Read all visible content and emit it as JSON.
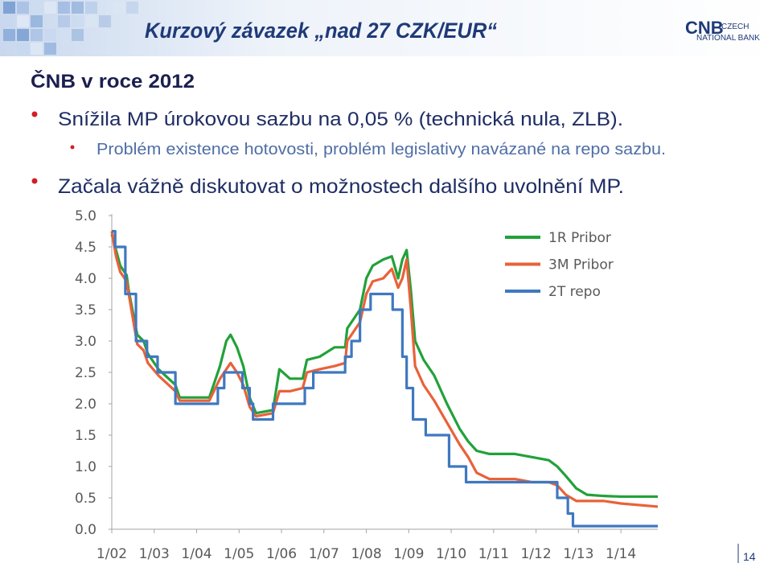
{
  "header": {
    "title": "Kurzový závazek „nad 27 CZK/EUR“",
    "logo": {
      "mark": "CNB",
      "line1": "CZECH",
      "line2": "NATIONAL BANK"
    }
  },
  "heading": "ČNB v roce 2012",
  "bullets": [
    {
      "level": 1,
      "text": "Snížila MP úrokovou sazbu na 0,05 % (technická nula, ZLB)."
    },
    {
      "level": 2,
      "text": "Problém existence hotovosti, problém legislativy navázané na repo sazbu."
    },
    {
      "level": 1,
      "text": "Začala vážně diskutovat o možnostech dalšího uvolnění MP."
    }
  ],
  "page_number": "14",
  "chart_data": {
    "type": "line",
    "legend": "upper right",
    "xlim": [
      2002,
      2014.87
    ],
    "xticks": [
      {
        "value": 2002,
        "label": "1/02"
      },
      {
        "value": 2003,
        "label": "1/03"
      },
      {
        "value": 2004,
        "label": "1/04"
      },
      {
        "value": 2005,
        "label": "1/05"
      },
      {
        "value": 2006,
        "label": "1/06"
      },
      {
        "value": 2007,
        "label": "1/07"
      },
      {
        "value": 2008,
        "label": "1/08"
      },
      {
        "value": 2009,
        "label": "1/09"
      },
      {
        "value": 2010,
        "label": "1/10"
      },
      {
        "value": 2011,
        "label": "1/11"
      },
      {
        "value": 2012,
        "label": "1/12"
      },
      {
        "value": 2013,
        "label": "1/13"
      },
      {
        "value": 2014,
        "label": "1/14"
      }
    ],
    "ylim": [
      0,
      5
    ],
    "yticks": [
      {
        "value": 0,
        "label": "0.0"
      },
      0.5,
      {
        "value": 1,
        "label": "1.0"
      },
      1.5,
      {
        "value": 2,
        "label": "2.0"
      },
      2.5,
      {
        "value": 3,
        "label": "3.0"
      },
      3.5,
      {
        "value": 4,
        "label": "4.0"
      },
      4.5,
      {
        "value": 5,
        "label": "5.0"
      }
    ],
    "series": [
      {
        "name": "1R Pribor",
        "color": "#22a13a",
        "x": [
          2002.0,
          2002.1,
          2002.2,
          2002.35,
          2002.4,
          2002.6,
          2002.75,
          2002.85,
          2003.1,
          2003.5,
          2003.6,
          2004.3,
          2004.55,
          2004.7,
          2004.8,
          2004.95,
          2005.1,
          2005.25,
          2005.4,
          2005.8,
          2005.95,
          2006.2,
          2006.5,
          2006.6,
          2006.9,
          2007.25,
          2007.5,
          2007.55,
          2007.85,
          2008.0,
          2008.15,
          2008.4,
          2008.6,
          2008.75,
          2008.85,
          2008.95,
          2009.05,
          2009.15,
          2009.35,
          2009.6,
          2009.9,
          2010.2,
          2010.4,
          2010.6,
          2010.9,
          2011.5,
          2011.9,
          2012.3,
          2012.5,
          2012.7,
          2012.95,
          2013.2,
          2013.6,
          2014.0,
          2014.87
        ],
        "values": [
          4.7,
          4.45,
          4.2,
          4.05,
          3.8,
          3.1,
          3.0,
          2.8,
          2.55,
          2.3,
          2.1,
          2.1,
          2.6,
          3.0,
          3.1,
          2.9,
          2.6,
          2.1,
          1.85,
          1.9,
          2.55,
          2.4,
          2.4,
          2.7,
          2.75,
          2.9,
          2.9,
          3.2,
          3.5,
          4.0,
          4.2,
          4.3,
          4.35,
          4.0,
          4.3,
          4.45,
          3.8,
          3.0,
          2.7,
          2.45,
          2.0,
          1.6,
          1.4,
          1.25,
          1.2,
          1.2,
          1.15,
          1.1,
          1.0,
          0.85,
          0.65,
          0.55,
          0.53,
          0.52,
          0.52
        ]
      },
      {
        "name": "3M Pribor",
        "color": "#e8623a",
        "x": [
          2002.0,
          2002.1,
          2002.2,
          2002.35,
          2002.45,
          2002.6,
          2002.75,
          2002.85,
          2003.1,
          2003.5,
          2003.6,
          2004.3,
          2004.55,
          2004.7,
          2004.8,
          2004.95,
          2005.1,
          2005.25,
          2005.4,
          2005.8,
          2005.95,
          2006.2,
          2006.5,
          2006.6,
          2006.9,
          2007.25,
          2007.5,
          2007.55,
          2007.85,
          2008.0,
          2008.15,
          2008.4,
          2008.6,
          2008.75,
          2008.85,
          2008.95,
          2009.05,
          2009.15,
          2009.35,
          2009.6,
          2009.9,
          2010.2,
          2010.4,
          2010.6,
          2010.9,
          2011.5,
          2011.9,
          2012.3,
          2012.5,
          2012.7,
          2012.95,
          2013.2,
          2013.6,
          2014.0,
          2014.87
        ],
        "values": [
          4.75,
          4.35,
          4.1,
          3.95,
          3.55,
          2.95,
          2.85,
          2.65,
          2.45,
          2.2,
          2.05,
          2.05,
          2.4,
          2.55,
          2.65,
          2.5,
          2.3,
          1.95,
          1.8,
          1.85,
          2.2,
          2.2,
          2.25,
          2.5,
          2.55,
          2.6,
          2.65,
          3.0,
          3.3,
          3.75,
          3.95,
          4.0,
          4.15,
          3.85,
          4.0,
          4.3,
          3.5,
          2.6,
          2.3,
          2.05,
          1.7,
          1.35,
          1.15,
          0.9,
          0.8,
          0.8,
          0.75,
          0.75,
          0.7,
          0.55,
          0.45,
          0.45,
          0.45,
          0.41,
          0.36
        ]
      },
      {
        "name": "2T repo",
        "color": "#3f78c0",
        "x": [
          2002.0,
          2002.08,
          2002.08,
          2002.32,
          2002.32,
          2002.57,
          2002.57,
          2002.83,
          2002.83,
          2003.08,
          2003.08,
          2003.5,
          2003.5,
          2004.5,
          2004.5,
          2004.65,
          2004.65,
          2005.08,
          2005.08,
          2005.25,
          2005.25,
          2005.33,
          2005.33,
          2005.8,
          2005.8,
          2006.55,
          2006.55,
          2006.75,
          2006.75,
          2007.5,
          2007.5,
          2007.65,
          2007.65,
          2007.85,
          2007.85,
          2008.1,
          2008.1,
          2008.62,
          2008.62,
          2008.85,
          2008.85,
          2008.95,
          2008.95,
          2009.1,
          2009.1,
          2009.4,
          2009.4,
          2009.95,
          2009.95,
          2010.35,
          2010.35,
          2012.5,
          2012.5,
          2012.75,
          2012.75,
          2012.87,
          2012.87,
          2014.87
        ],
        "values": [
          4.75,
          4.75,
          4.5,
          4.5,
          3.75,
          3.75,
          3.0,
          3.0,
          2.75,
          2.75,
          2.5,
          2.5,
          2.0,
          2.0,
          2.25,
          2.25,
          2.5,
          2.5,
          2.25,
          2.25,
          2.0,
          2.0,
          1.75,
          1.75,
          2.0,
          2.0,
          2.25,
          2.25,
          2.5,
          2.5,
          2.75,
          2.75,
          3.0,
          3.0,
          3.5,
          3.5,
          3.75,
          3.75,
          3.5,
          3.5,
          2.75,
          2.75,
          2.25,
          2.25,
          1.75,
          1.75,
          1.5,
          1.5,
          1.0,
          1.0,
          0.75,
          0.75,
          0.5,
          0.5,
          0.25,
          0.25,
          0.05,
          0.05
        ]
      }
    ]
  }
}
